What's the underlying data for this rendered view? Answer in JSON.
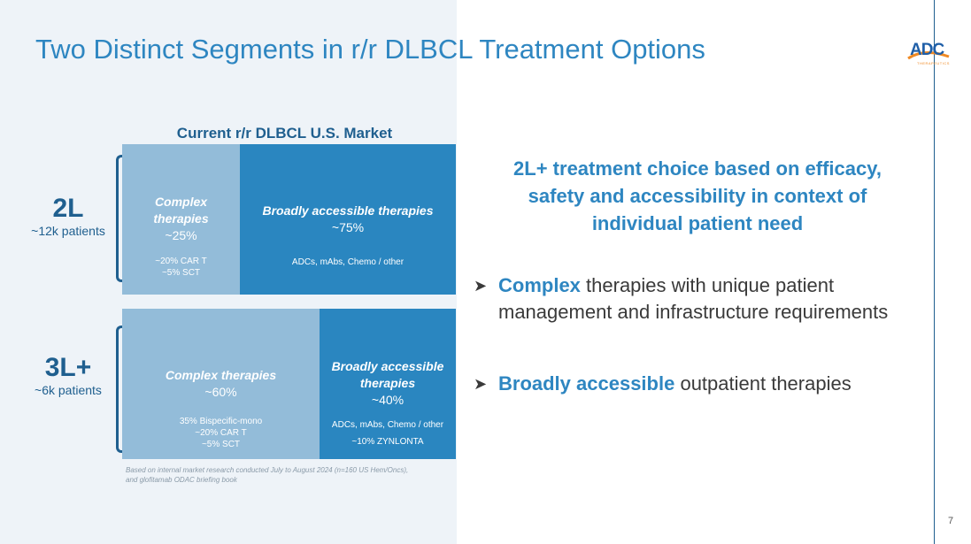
{
  "slide": {
    "title": "Two Distinct Segments in r/r DLBCL Treatment Options",
    "logo_text": "ADC",
    "logo_sub": "THERAPEUTICS",
    "page_number": "7"
  },
  "chart": {
    "title": "Current r/r DLBCL U.S. Market",
    "footnote_line1": "Based on internal market research conducted July to August 2024 (n=160 US Hem/Oncs),",
    "footnote_line2": "and glofitamab ODAC briefing book"
  },
  "rows": [
    {
      "label": "2L",
      "patients": "~12k patients",
      "segments": [
        {
          "head_line1": "Complex",
          "head_line2": "therapies",
          "pct": "~25%",
          "sub_line1": "~20% CAR T",
          "sub_line2": "~5% SCT",
          "share": 0.25
        },
        {
          "head_line1": "Broadly accessible therapies",
          "pct": "~75%",
          "sub_line1": "ADCs, mAbs, Chemo / other",
          "share": 0.75
        }
      ]
    },
    {
      "label": "3L+",
      "patients": "~6k patients",
      "segments": [
        {
          "head_line1": "Complex therapies",
          "pct": "~60%",
          "sub_line1": "35% Bispecific-mono",
          "sub_line2": "~20% CAR T",
          "sub_line3": "~5% SCT",
          "share": 0.6
        },
        {
          "head_line1": "Broadly accessible",
          "head_line2": "therapies",
          "pct": "~40%",
          "sub_line1": "ADCs, mAbs, Chemo / other",
          "sub_line2": "~10% ZYNLONTA",
          "share": 0.4
        }
      ]
    }
  ],
  "right": {
    "headline_line1": "2L+ treatment choice based on efficacy,",
    "headline_line2": "safety and accessibility in context of",
    "headline_line3": "individual patient need",
    "bullets": [
      {
        "highlight": "Complex",
        "rest": " therapies with unique patient management and infrastructure requirements"
      },
      {
        "highlight": "Broadly accessible",
        "rest": " outpatient therapies"
      }
    ]
  },
  "colors": {
    "accent": "#2e86c1",
    "dark_segment": "#2a86c0",
    "light_segment": "#93bcd9",
    "navy": "#1f5f8f"
  }
}
